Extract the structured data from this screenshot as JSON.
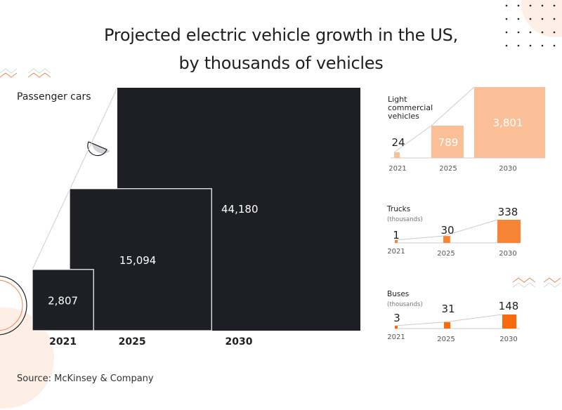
{
  "title": {
    "line1": "Projected electric vehicle growth in the US,",
    "line2": "by thousands of vehicles"
  },
  "source": "Source: McKinsey & Company",
  "colors": {
    "passenger": "#1e1f24",
    "lcv": "#fbbf98",
    "trucks": "#f88535",
    "buses": "#f76b0e",
    "baseline": "#e6e6e6",
    "connector": "#cccccc",
    "deco_peach": "#fdeee6",
    "deco_orange": "#e8884c"
  },
  "chart_data": [
    {
      "type": "bar",
      "encoding": "area-squares",
      "title": "Passenger cars",
      "categories": [
        "2021",
        "2025",
        "2030"
      ],
      "values": [
        2807,
        15094,
        44180
      ],
      "labels": [
        "2,807",
        "15,094",
        "44,180"
      ],
      "unit": "thousands of vehicles"
    },
    {
      "type": "bar",
      "encoding": "area-squares",
      "title": "Light commercial vehicles",
      "title_lines": [
        "Light",
        "commercial",
        "vehicles"
      ],
      "categories": [
        "2021",
        "2025",
        "2030"
      ],
      "values": [
        24,
        789,
        3801
      ],
      "labels": [
        "24",
        "789",
        "3,801"
      ],
      "unit": "thousands of vehicles"
    },
    {
      "type": "bar",
      "encoding": "area-squares",
      "title": "Trucks",
      "subtitle": "(thousands)",
      "categories": [
        "2021",
        "2025",
        "2030"
      ],
      "values": [
        1,
        30,
        338
      ],
      "labels": [
        "1",
        "30",
        "338"
      ],
      "unit": "thousands"
    },
    {
      "type": "bar",
      "encoding": "area-squares",
      "title": "Buses",
      "subtitle": "(thousands)",
      "categories": [
        "2021",
        "2025",
        "2030"
      ],
      "values": [
        3,
        31,
        148
      ],
      "labels": [
        "3",
        "31",
        "148"
      ],
      "unit": "thousands"
    }
  ]
}
